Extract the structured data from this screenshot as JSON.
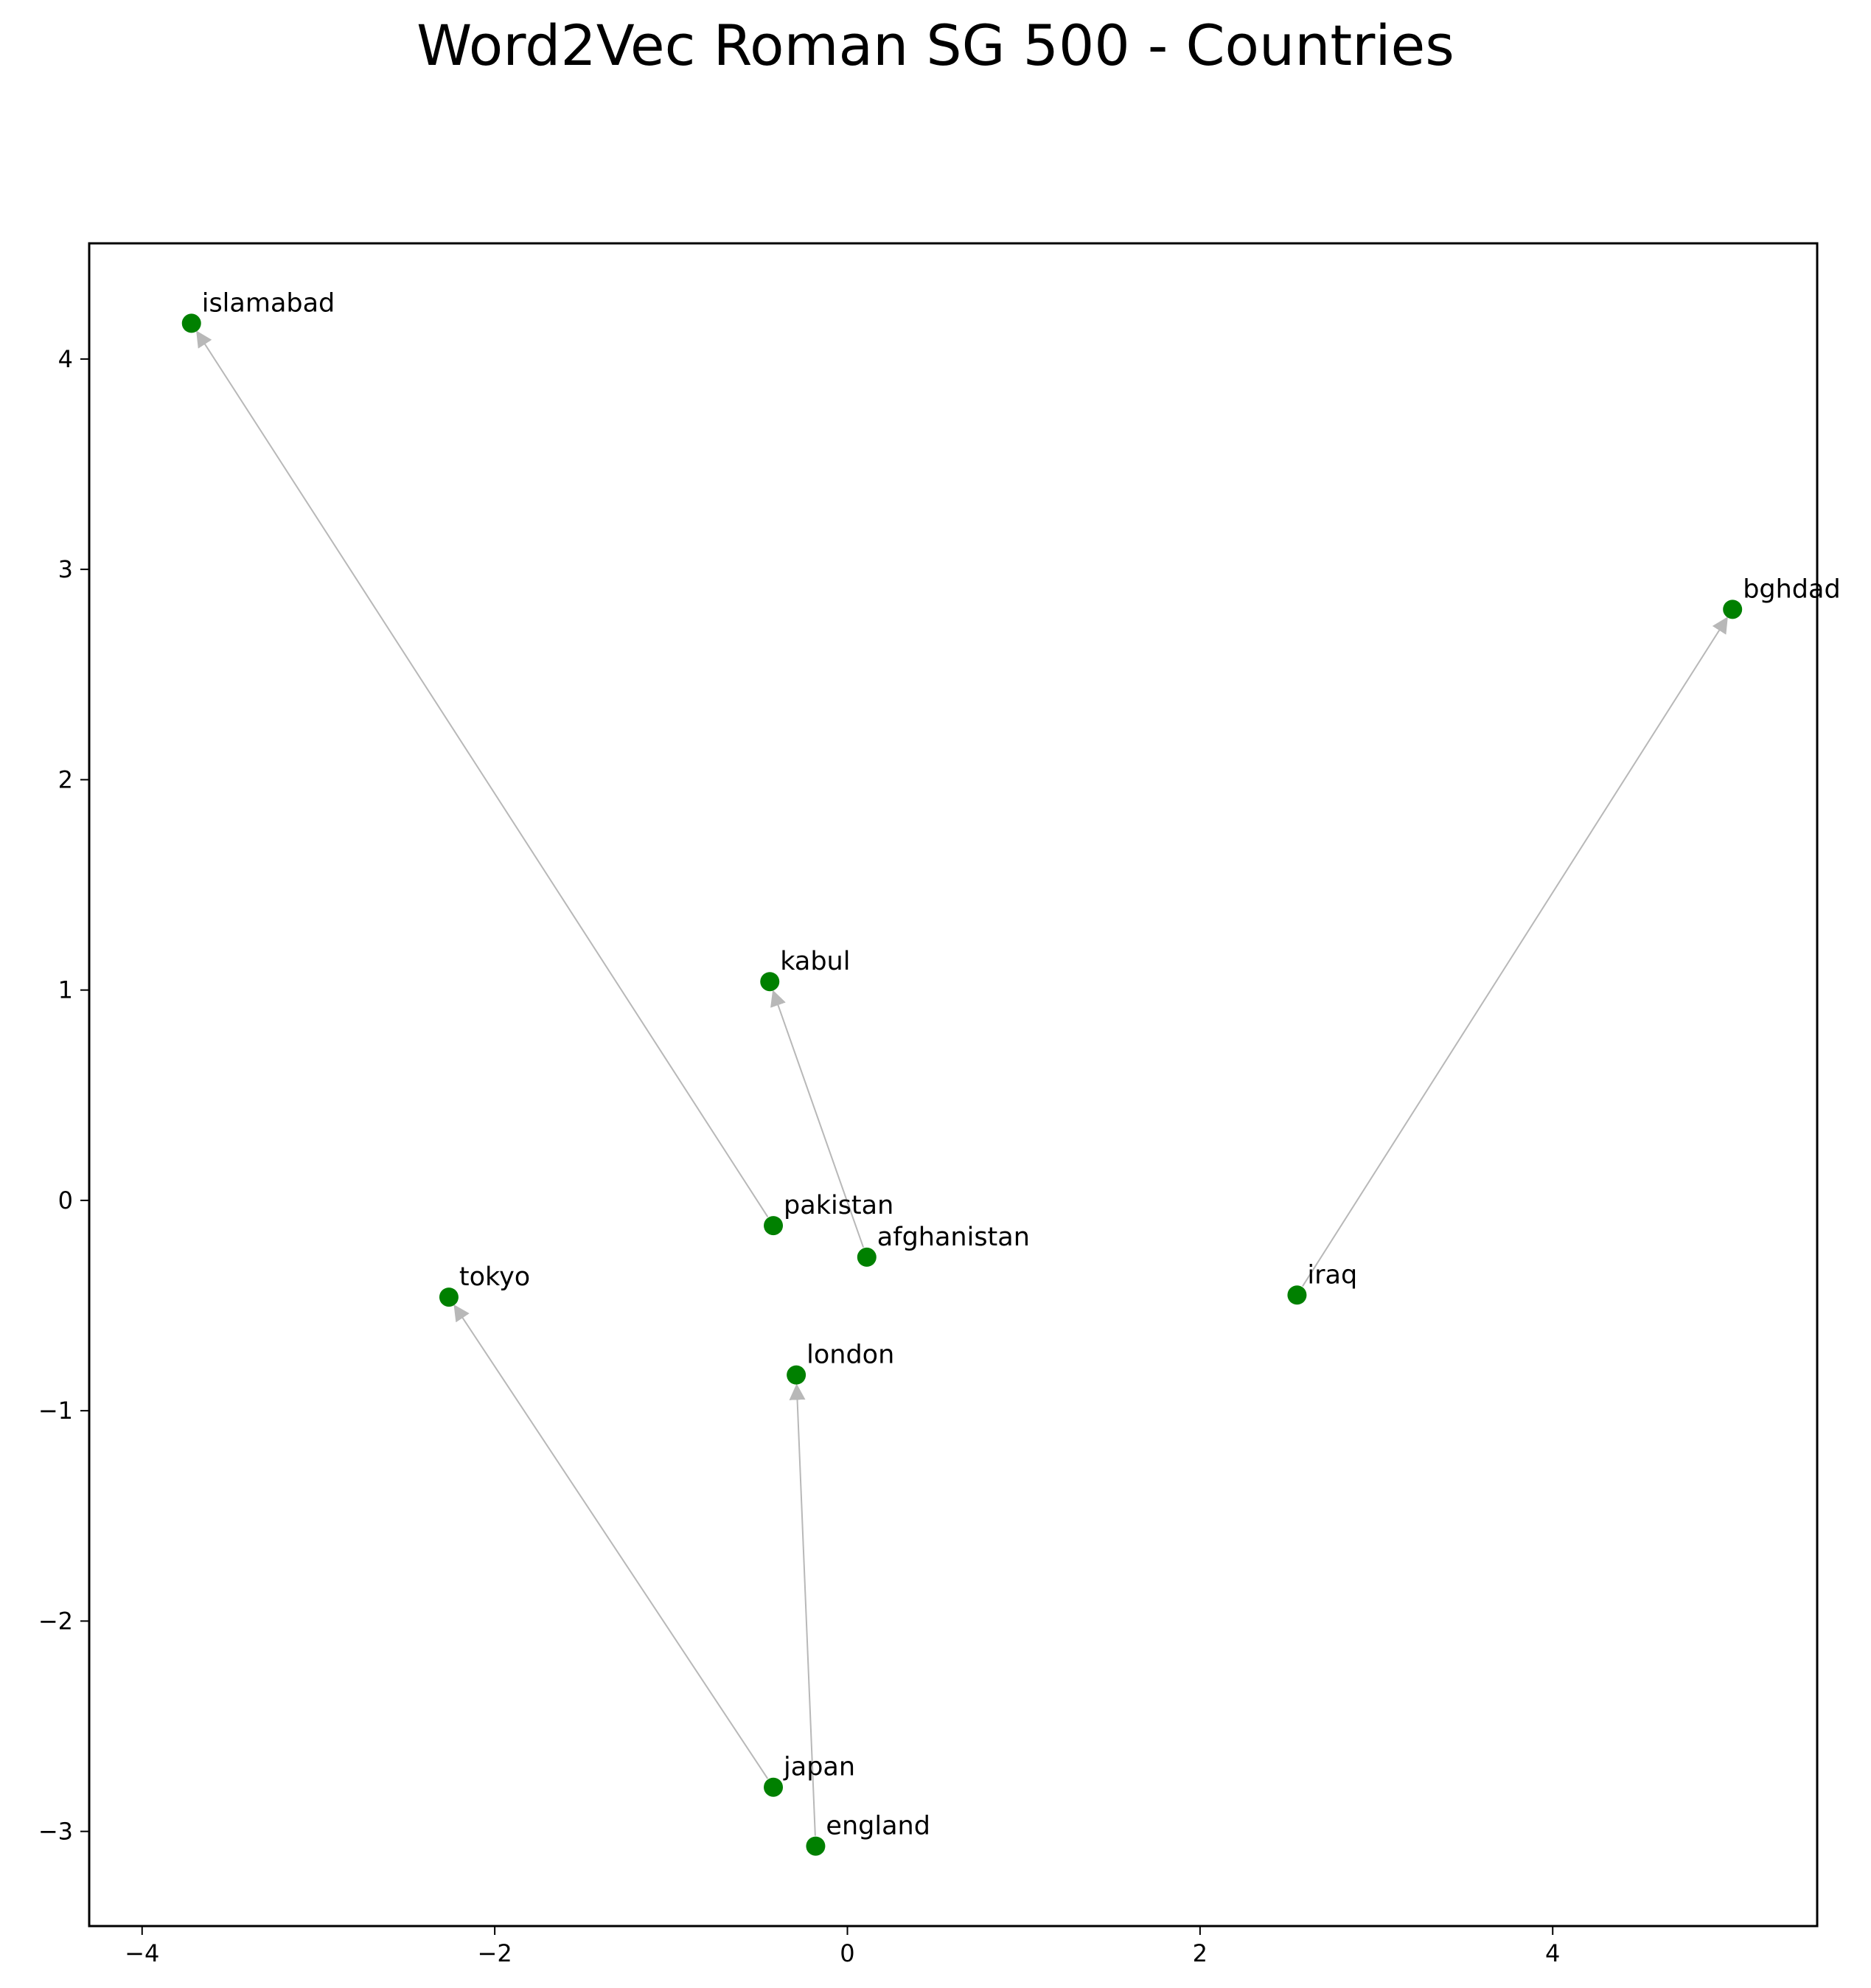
{
  "chart_data": {
    "type": "scatter",
    "title": "Word2Vec Roman SG 500 - Countries",
    "xlabel": "",
    "ylabel": "",
    "xlim": [
      -4.3,
      5.5
    ],
    "ylim": [
      -3.45,
      4.55
    ],
    "xticks": [
      -4,
      -2,
      0,
      2,
      4
    ],
    "yticks": [
      -3,
      -2,
      -1,
      0,
      1,
      2,
      3,
      4
    ],
    "grid": false,
    "point_color": "#008000",
    "arrow_color": "#b8b8b8",
    "points": [
      {
        "label": "islamabad",
        "x": -3.72,
        "y": 4.17
      },
      {
        "label": "bghdad",
        "x": 5.02,
        "y": 2.81
      },
      {
        "label": "kabul",
        "x": -0.44,
        "y": 1.04
      },
      {
        "label": "pakistan",
        "x": -0.42,
        "y": -0.12
      },
      {
        "label": "afghanistan",
        "x": 0.11,
        "y": -0.27
      },
      {
        "label": "tokyo",
        "x": -2.26,
        "y": -0.46
      },
      {
        "label": "iraq",
        "x": 2.55,
        "y": -0.45
      },
      {
        "label": "london",
        "x": -0.29,
        "y": -0.83
      },
      {
        "label": "japan",
        "x": -0.42,
        "y": -2.79
      },
      {
        "label": "england",
        "x": -0.18,
        "y": -3.07
      }
    ],
    "arrows": [
      {
        "from": "pakistan",
        "to": "islamabad"
      },
      {
        "from": "afghanistan",
        "to": "kabul"
      },
      {
        "from": "iraq",
        "to": "bghdad"
      },
      {
        "from": "japan",
        "to": "tokyo"
      },
      {
        "from": "england",
        "to": "london"
      }
    ]
  }
}
